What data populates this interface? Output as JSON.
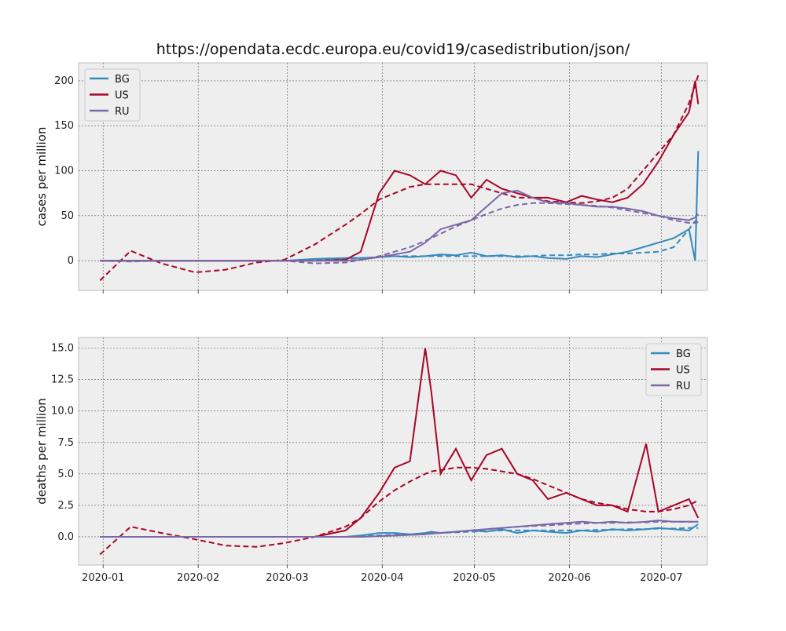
{
  "figure": {
    "title": "https://opendata.ecdc.europa.eu/covid19/casedistribution/json/"
  },
  "chart_data": [
    {
      "type": "line",
      "ylabel": "cases per million",
      "xlabel": "",
      "x_ticks": [
        "2020-01",
        "2020-02",
        "2020-03",
        "2020-04",
        "2020-05",
        "2020-06",
        "2020-07"
      ],
      "x_range": [
        "2019-12-24",
        "2020-07-16"
      ],
      "ylim": [
        -33,
        220
      ],
      "y_ticks": [
        "0",
        "50",
        "100",
        "150",
        "200"
      ],
      "grid": true,
      "legend_position": "top-left",
      "x": [
        "2019-12-31",
        "2020-01-10",
        "2020-01-20",
        "2020-01-31",
        "2020-02-10",
        "2020-02-20",
        "2020-02-29",
        "2020-03-10",
        "2020-03-20",
        "2020-03-25",
        "2020-03-31",
        "2020-04-05",
        "2020-04-10",
        "2020-04-15",
        "2020-04-20",
        "2020-04-25",
        "2020-04-30",
        "2020-05-05",
        "2020-05-10",
        "2020-05-15",
        "2020-05-20",
        "2020-05-25",
        "2020-05-31",
        "2020-06-05",
        "2020-06-10",
        "2020-06-15",
        "2020-06-20",
        "2020-06-25",
        "2020-06-30",
        "2020-07-05",
        "2020-07-10",
        "2020-07-12",
        "2020-07-13"
      ],
      "series": [
        {
          "name": "BG",
          "color": "#348ABD",
          "values": [
            0,
            0,
            0,
            0,
            0,
            0,
            0,
            2,
            3,
            3,
            4,
            5,
            4,
            5,
            7,
            6,
            9,
            5,
            6,
            4,
            5,
            3,
            2,
            5,
            4,
            7,
            10,
            15,
            20,
            25,
            35,
            0,
            122
          ],
          "trend": [
            0,
            0,
            0,
            0,
            0,
            0,
            0,
            1,
            2,
            3,
            4,
            5,
            5,
            5,
            5,
            5,
            5,
            5,
            5,
            5,
            5,
            6,
            6,
            7,
            7,
            8,
            8,
            9,
            10,
            15,
            35,
            44,
            46
          ]
        },
        {
          "name": "US",
          "color": "#A60628",
          "values": [
            0,
            0,
            0,
            0,
            0,
            0,
            0,
            0,
            1,
            10,
            75,
            100,
            95,
            85,
            100,
            95,
            70,
            90,
            80,
            75,
            70,
            70,
            65,
            72,
            68,
            65,
            70,
            85,
            110,
            140,
            165,
            200,
            174
          ],
          "trend": [
            -22,
            11,
            -3,
            -13,
            -10,
            -2,
            1,
            18,
            40,
            52,
            68,
            75,
            82,
            85,
            85,
            85,
            85,
            80,
            75,
            70,
            70,
            66,
            65,
            64,
            66,
            70,
            80,
            100,
            120,
            140,
            175,
            195,
            206
          ]
        },
        {
          "name": "RU",
          "color": "#7A68A6",
          "values": [
            0,
            0,
            0,
            0,
            0,
            0,
            0,
            0,
            0,
            1,
            4,
            7,
            10,
            20,
            35,
            40,
            45,
            60,
            75,
            78,
            70,
            65,
            64,
            62,
            60,
            60,
            58,
            55,
            50,
            47,
            45,
            48,
            52
          ],
          "trend": [
            0,
            -1,
            0,
            0,
            0,
            0,
            0,
            -3,
            -2,
            1,
            5,
            10,
            15,
            22,
            30,
            38,
            45,
            52,
            58,
            62,
            64,
            64,
            63,
            62,
            61,
            59,
            56,
            53,
            50,
            45,
            42,
            42,
            43
          ]
        }
      ]
    },
    {
      "type": "line",
      "ylabel": "deaths per million",
      "xlabel": "",
      "x_ticks": [
        "2020-01",
        "2020-02",
        "2020-03",
        "2020-04",
        "2020-05",
        "2020-06",
        "2020-07"
      ],
      "x_range": [
        "2019-12-24",
        "2020-07-16"
      ],
      "ylim": [
        -2.25,
        15.85
      ],
      "y_ticks": [
        "0.0",
        "2.5",
        "5.0",
        "7.5",
        "10.0",
        "12.5",
        "15.0"
      ],
      "grid": true,
      "legend_position": "top-right",
      "x": [
        "2019-12-31",
        "2020-01-10",
        "2020-01-20",
        "2020-01-31",
        "2020-02-10",
        "2020-02-20",
        "2020-02-29",
        "2020-03-10",
        "2020-03-20",
        "2020-03-25",
        "2020-03-31",
        "2020-04-05",
        "2020-04-10",
        "2020-04-15",
        "2020-04-17",
        "2020-04-20",
        "2020-04-25",
        "2020-04-30",
        "2020-05-05",
        "2020-05-10",
        "2020-05-15",
        "2020-05-20",
        "2020-05-25",
        "2020-05-31",
        "2020-06-05",
        "2020-06-10",
        "2020-06-15",
        "2020-06-20",
        "2020-06-26",
        "2020-06-30",
        "2020-07-05",
        "2020-07-10",
        "2020-07-13"
      ],
      "series": [
        {
          "name": "BG",
          "color": "#348ABD",
          "values": [
            0,
            0,
            0,
            0,
            0,
            0,
            0,
            0,
            0,
            0.1,
            0.3,
            0.3,
            0.2,
            0.3,
            0.4,
            0.3,
            0.4,
            0.5,
            0.4,
            0.6,
            0.3,
            0.5,
            0.4,
            0.3,
            0.5,
            0.4,
            0.6,
            0.5,
            0.6,
            0.7,
            0.6,
            0.5,
            1.0
          ],
          "trend": [
            0,
            0,
            0,
            0,
            0,
            0,
            0,
            0,
            0,
            0.05,
            0.1,
            0.15,
            0.2,
            0.25,
            0.3,
            0.3,
            0.35,
            0.4,
            0.45,
            0.5,
            0.5,
            0.5,
            0.5,
            0.5,
            0.5,
            0.55,
            0.55,
            0.6,
            0.6,
            0.65,
            0.65,
            0.7,
            0.7
          ]
        },
        {
          "name": "US",
          "color": "#A60628",
          "values": [
            0,
            0,
            0,
            0,
            0,
            0,
            0,
            0,
            0.5,
            1.5,
            3.5,
            5.5,
            6.0,
            15.0,
            11.5,
            5.0,
            7.0,
            4.5,
            6.5,
            7.0,
            5.0,
            4.5,
            3.0,
            3.5,
            3.0,
            2.5,
            2.5,
            2.0,
            7.4,
            2.0,
            2.5,
            3.0,
            1.5
          ],
          "trend": [
            -1.4,
            0.8,
            0.3,
            -0.2,
            -0.7,
            -0.8,
            -0.5,
            0,
            0.8,
            1.5,
            2.8,
            3.7,
            4.4,
            5.0,
            5.2,
            5.3,
            5.5,
            5.5,
            5.4,
            5.2,
            5.0,
            4.6,
            4.1,
            3.5,
            3.0,
            2.7,
            2.5,
            2.2,
            2.0,
            2.0,
            2.2,
            2.5,
            2.9
          ]
        },
        {
          "name": "RU",
          "color": "#7A68A6",
          "values": [
            0,
            0,
            0,
            0,
            0,
            0,
            0,
            0,
            0,
            0,
            0.05,
            0.1,
            0.15,
            0.2,
            0.25,
            0.3,
            0.4,
            0.5,
            0.6,
            0.7,
            0.8,
            0.9,
            1.0,
            1.1,
            1.2,
            1.1,
            1.2,
            1.1,
            1.2,
            1.3,
            1.2,
            1.2,
            1.2
          ],
          "trend": [
            0,
            0,
            0,
            0,
            0,
            0,
            0,
            0,
            0,
            0,
            0.05,
            0.1,
            0.15,
            0.2,
            0.25,
            0.3,
            0.4,
            0.5,
            0.6,
            0.7,
            0.8,
            0.85,
            0.9,
            1.0,
            1.05,
            1.1,
            1.1,
            1.15,
            1.15,
            1.2,
            1.2,
            1.2,
            1.2
          ]
        }
      ]
    }
  ]
}
